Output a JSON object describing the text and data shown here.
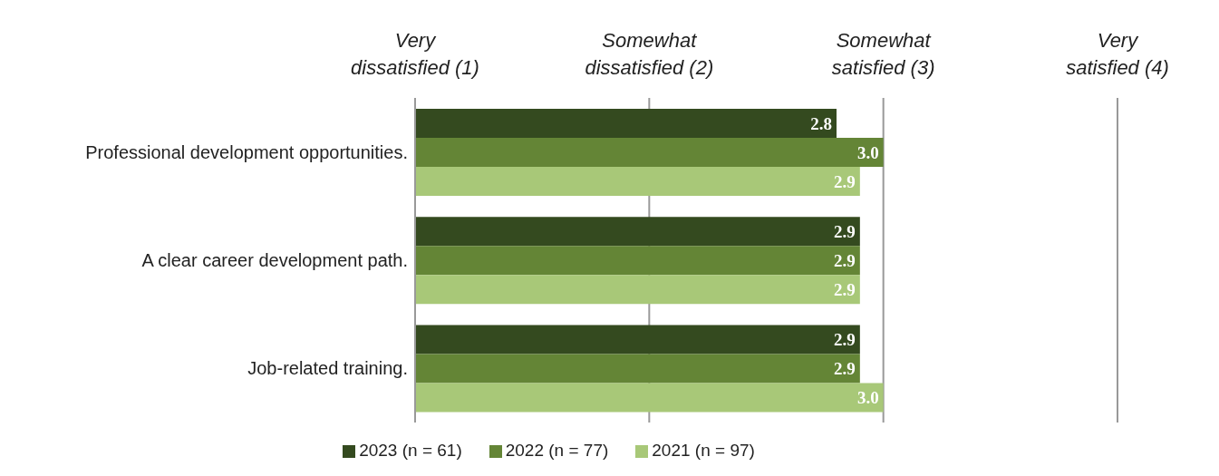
{
  "chart_data": {
    "type": "bar",
    "orientation": "horizontal",
    "categories": [
      "Professional development opportunities.",
      "A clear career development path.",
      "Job-related training."
    ],
    "series": [
      {
        "name": "2023 (n = 61)",
        "color": "#344a1f",
        "values": [
          2.8,
          2.9,
          2.9
        ],
        "value_labels": [
          "2.8",
          "2.9",
          "2.9"
        ]
      },
      {
        "name": "2022 (n = 77)",
        "color": "#648536",
        "values": [
          3.0,
          2.9,
          2.9
        ],
        "value_labels": [
          "3.0",
          "2.9",
          "2.9"
        ]
      },
      {
        "name": "2021 (n = 97)",
        "color": "#a8c878",
        "values": [
          2.9,
          2.9,
          3.0
        ],
        "value_labels": [
          "2.9",
          "2.9",
          "3.0"
        ]
      }
    ],
    "xlim": [
      1,
      4
    ],
    "xticks": [
      {
        "value": 1,
        "label": "Very dissatisfied (1)"
      },
      {
        "value": 2,
        "label": "Somewhat dissatisfied (2)"
      },
      {
        "value": 3,
        "label": "Somewhat satisfied (3)"
      },
      {
        "value": 4,
        "label": "Very satisfied (4)"
      }
    ],
    "grid": "x",
    "legend": "bottom"
  }
}
